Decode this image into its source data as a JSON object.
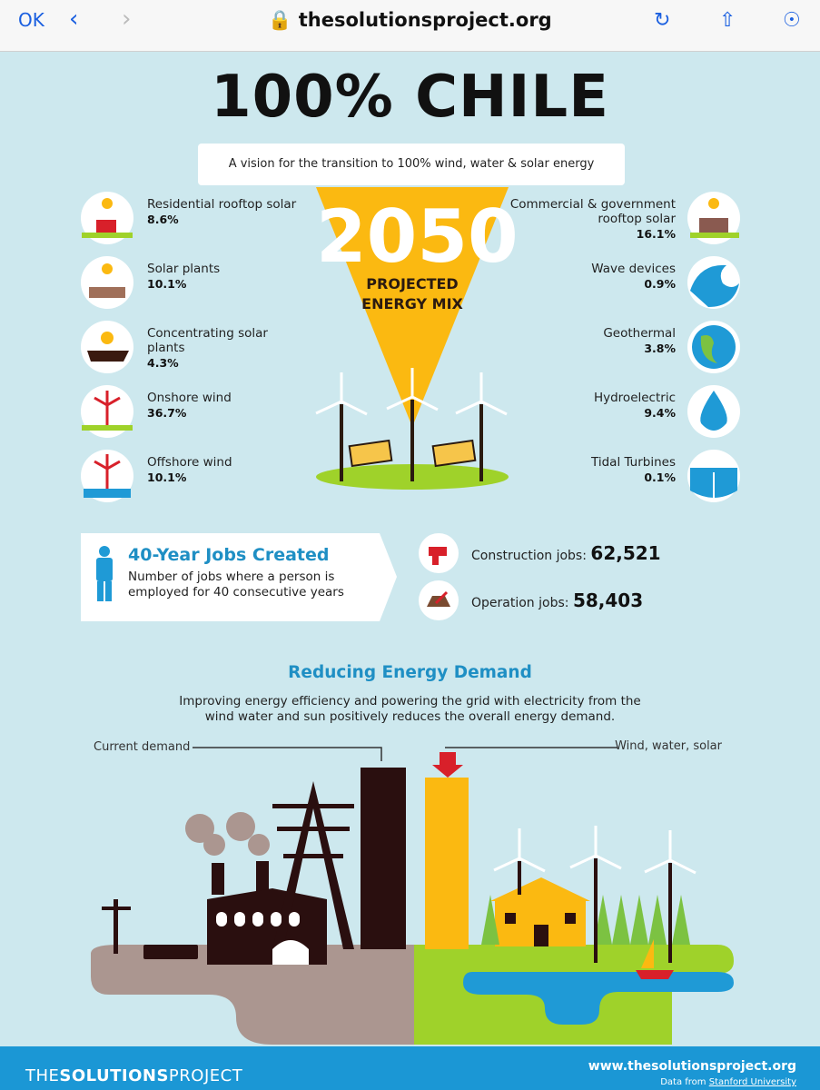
{
  "browser": {
    "done_label": "OK",
    "url": "thesolutionsproject.org"
  },
  "infographic": {
    "title": "100% CHILE",
    "subtitle": "A vision for the transition to 100% wind, water & solar energy",
    "year": "2050",
    "mix_label": [
      "PROJECTED",
      "ENERGY MIX"
    ],
    "left_sources": [
      {
        "name": "Residential rooftop solar",
        "share": "8.6%"
      },
      {
        "name": "Solar plants",
        "share": "10.1%"
      },
      {
        "name": "Concentrating solar plants",
        "share": "4.3%"
      },
      {
        "name": "Onshore wind",
        "share": "36.7%"
      },
      {
        "name": "Offshore wind",
        "share": "10.1%"
      }
    ],
    "right_sources": [
      {
        "name": "Commercial & government rooftop solar",
        "share": "16.1%"
      },
      {
        "name": "Wave devices",
        "share": "0.9%"
      },
      {
        "name": "Geothermal",
        "share": "3.8%"
      },
      {
        "name": "Hydroelectric",
        "share": "9.4%"
      },
      {
        "name": "Tidal Turbines",
        "share": "0.1%"
      }
    ],
    "jobs": {
      "title": "40-Year Jobs Created",
      "description": "Number of jobs where a person is employed for 40 consecutive years",
      "construction": {
        "label": "Construction jobs:",
        "value": "62,521"
      },
      "operation": {
        "label": "Operation jobs:",
        "value": "58,403"
      }
    },
    "demand": {
      "title": "Reducing Energy Demand",
      "text": "Improving energy efficiency and powering the grid with electricity from the wind water and sun positively reduces the overall energy demand.",
      "current_label": "Current demand",
      "wws_label": "Wind, water, solar"
    },
    "footer": {
      "brand": [
        "THE",
        "SOLUTIONS",
        "PROJECT"
      ],
      "url": "www.thesolutionsproject.org",
      "credit": "Data from",
      "source": "Stanford University"
    }
  }
}
